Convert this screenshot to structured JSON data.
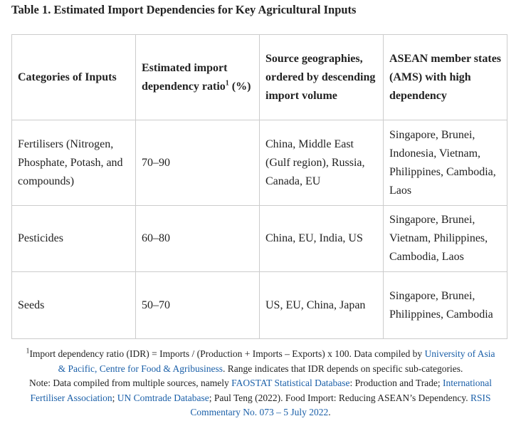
{
  "title": "Table 1. Estimated Import Dependencies for Key Agricultural Inputs",
  "table": {
    "header": [
      [
        "Categories of Inputs"
      ],
      [
        "Estimated import dependency ratio",
        {
          "sup": "1"
        },
        " (%)"
      ],
      [
        "Source geographies, ordered by descending import volume"
      ],
      [
        "ASEAN member states (AMS) with high dependency"
      ]
    ],
    "rows": [
      [
        "Fertilisers (Nitrogen, Phosphate, Potash, and compounds)",
        "70–90",
        "China, Middle East (Gulf region), Russia, Canada, EU",
        "Singapore, Brunei, Indonesia, Vietnam, Philippines, Cambodia, Laos"
      ],
      [
        "Pesticides",
        "60–80",
        "China, EU, India, US",
        "Singapore, Brunei, Vietnam, Philippines, Cambodia, Laos"
      ],
      [
        "Seeds",
        "50–70",
        "US, EU, China, Japan",
        "Singapore, Brunei, Philippines, Cambodia"
      ]
    ]
  },
  "notes": [
    [
      {
        "sup": "1"
      },
      "Import dependency ratio (IDR) = Imports / (Production + Imports – Exports) x 100. Data compiled by ",
      {
        "link": "University of Asia"
      }
    ],
    [
      {
        "link": "& Pacific, Centre for Food & Agribusiness"
      },
      ". Range indicates that IDR depends on specific sub-categories."
    ],
    [
      "Note: Data compiled from multiple sources, namely ",
      {
        "link": "FAOSTAT Statistical Database"
      },
      ": Production and Trade; ",
      {
        "link": "International"
      }
    ],
    [
      {
        "link": "Fertiliser Association"
      },
      "; ",
      {
        "link": "UN Comtrade Database"
      },
      "; Paul Teng (2022). Food Import: Reducing ASEAN’s Dependency. ",
      {
        "link": "RSIS"
      }
    ],
    [
      {
        "link": "Commentary No. 073 – 5 July 2022"
      },
      "."
    ]
  ]
}
